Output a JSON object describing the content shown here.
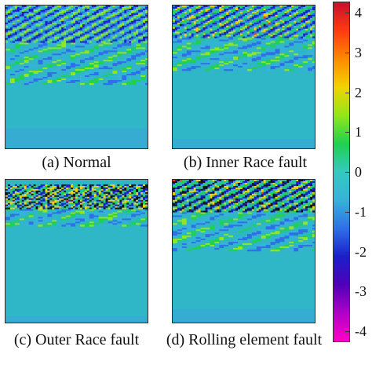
{
  "chart_data": [
    {
      "type": "heatmap",
      "caption": "(a) Normal",
      "profile": "normal"
    },
    {
      "type": "heatmap",
      "caption": "(b) Inner Race fault",
      "profile": "inner"
    },
    {
      "type": "heatmap",
      "caption": "(c) Outer Race fault",
      "profile": "outer"
    },
    {
      "type": "heatmap",
      "caption": "(d) Rolling element fault",
      "profile": "rolling"
    }
  ],
  "colorbar": {
    "ticks": [
      "4",
      "3",
      "2",
      "1",
      "0",
      "-1",
      "-2",
      "-3",
      "-4"
    ],
    "range": [
      -4,
      4
    ],
    "colors": [
      "#c8102e",
      "#ff3a10",
      "#ff8a00",
      "#f2d300",
      "#93e61a",
      "#1fd150",
      "#34c9c0",
      "#36b3d8",
      "#2f6fe8",
      "#1a1fc9",
      "#4f00b8",
      "#b000c8",
      "#ff00c8"
    ]
  }
}
